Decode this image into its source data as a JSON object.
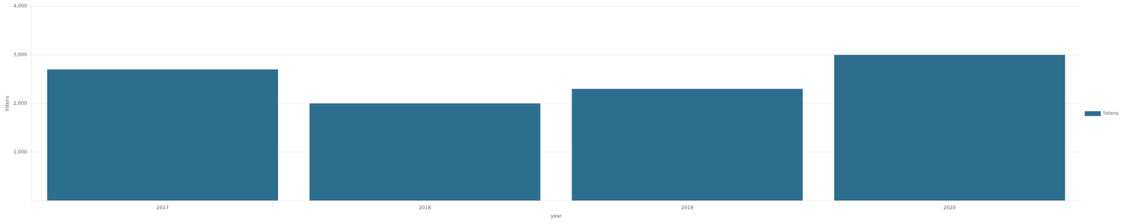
{
  "chart_data": {
    "type": "bar",
    "categories": [
      "2017",
      "2018",
      "2019",
      "2020"
    ],
    "series": [
      {
        "name": "listens",
        "color": "#2d6e8e",
        "values": [
          2700,
          2000,
          2300,
          3000
        ]
      }
    ],
    "xlabel": "year",
    "ylabel": "listens",
    "ylim": [
      0,
      4000
    ],
    "yticks": [
      {
        "value": 1000,
        "label": "1,000"
      },
      {
        "value": 2000,
        "label": "2,000"
      },
      {
        "value": 3000,
        "label": "3,000"
      },
      {
        "value": 4000,
        "label": "4,000"
      }
    ],
    "grid": true,
    "legend": "right"
  }
}
